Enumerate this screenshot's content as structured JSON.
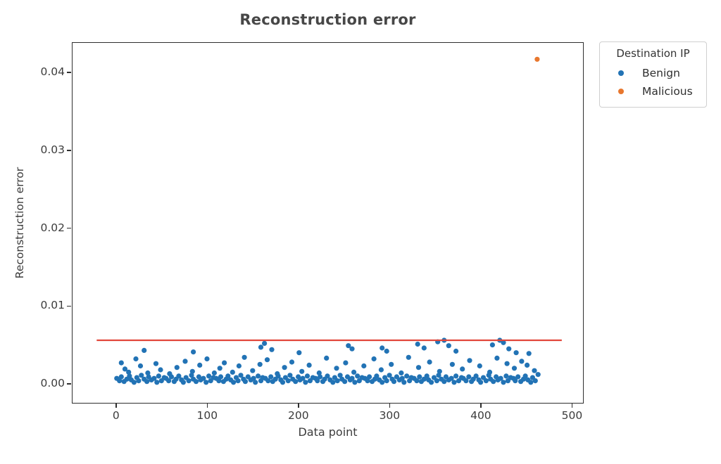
{
  "chart_data": {
    "type": "scatter",
    "title": "Reconstruction error",
    "xlabel": "Data point",
    "ylabel": "Reconstruction error",
    "xlim": [
      -48.5,
      510.5
    ],
    "ylim": [
      -0.00225,
      0.0439
    ],
    "x_ticks": [
      0,
      100,
      200,
      300,
      400,
      500
    ],
    "x_tick_labels": [
      "0",
      "100",
      "200",
      "300",
      "400",
      "500"
    ],
    "y_ticks": [
      0.0,
      0.01,
      0.02,
      0.03,
      0.04
    ],
    "y_tick_labels": [
      "0.00",
      "0.01",
      "0.02",
      "0.03",
      "0.04"
    ],
    "grid": false,
    "legend": {
      "title": "Destination IP",
      "position": "outside-upper-right",
      "entries": [
        {
          "label": "Benign",
          "color": "#2273b5"
        },
        {
          "label": "Malicious",
          "color": "#e8772e"
        }
      ]
    },
    "threshold_line": {
      "y": 0.0057,
      "x_start": -22,
      "x_end": 488,
      "color": "#e2473b",
      "width": 2.2
    },
    "colors": {
      "spine": "#2e2e2e",
      "text": "#3c3c3c",
      "background": "#ffffff"
    },
    "series": [
      {
        "name": "Benign",
        "color": "#2273b5",
        "marker_radius": 3.6,
        "points": [
          [
            0,
            0.0008
          ],
          [
            3,
            0.0005
          ],
          [
            5,
            0.001
          ],
          [
            8,
            0.0004
          ],
          [
            11,
            0.0007
          ],
          [
            14,
            0.0011
          ],
          [
            16,
            0.0006
          ],
          [
            19,
            0.0003
          ],
          [
            22,
            0.0009
          ],
          [
            24,
            0.0005
          ],
          [
            27,
            0.0012
          ],
          [
            30,
            0.0007
          ],
          [
            33,
            0.0004
          ],
          [
            35,
            0.001
          ],
          [
            38,
            0.0006
          ],
          [
            41,
            0.0008
          ],
          [
            44,
            0.0003
          ],
          [
            46,
            0.0011
          ],
          [
            49,
            0.0005
          ],
          [
            52,
            0.0009
          ],
          [
            54,
            0.0008
          ],
          [
            57,
            0.0005
          ],
          [
            60,
            0.001
          ],
          [
            63,
            0.0004
          ],
          [
            65,
            0.0007
          ],
          [
            68,
            0.0011
          ],
          [
            71,
            0.0006
          ],
          [
            73,
            0.0003
          ],
          [
            76,
            0.0009
          ],
          [
            79,
            0.0005
          ],
          [
            82,
            0.0012
          ],
          [
            84,
            0.0007
          ],
          [
            87,
            0.0004
          ],
          [
            90,
            0.001
          ],
          [
            92,
            0.0006
          ],
          [
            95,
            0.0008
          ],
          [
            98,
            0.0003
          ],
          [
            101,
            0.0011
          ],
          [
            103,
            0.0005
          ],
          [
            106,
            0.0009
          ],
          [
            109,
            0.0008
          ],
          [
            112,
            0.0005
          ],
          [
            114,
            0.001
          ],
          [
            117,
            0.0004
          ],
          [
            120,
            0.0007
          ],
          [
            122,
            0.0011
          ],
          [
            125,
            0.0006
          ],
          [
            128,
            0.0003
          ],
          [
            131,
            0.0009
          ],
          [
            133,
            0.0005
          ],
          [
            136,
            0.0012
          ],
          [
            139,
            0.0007
          ],
          [
            141,
            0.0004
          ],
          [
            144,
            0.001
          ],
          [
            147,
            0.0006
          ],
          [
            150,
            0.0008
          ],
          [
            152,
            0.0003
          ],
          [
            155,
            0.0011
          ],
          [
            158,
            0.0005
          ],
          [
            160,
            0.0009
          ],
          [
            163,
            0.0008
          ],
          [
            166,
            0.0005
          ],
          [
            169,
            0.001
          ],
          [
            171,
            0.0004
          ],
          [
            174,
            0.0007
          ],
          [
            177,
            0.0011
          ],
          [
            180,
            0.0006
          ],
          [
            182,
            0.0003
          ],
          [
            185,
            0.0009
          ],
          [
            188,
            0.0005
          ],
          [
            190,
            0.0012
          ],
          [
            193,
            0.0007
          ],
          [
            196,
            0.0004
          ],
          [
            199,
            0.001
          ],
          [
            201,
            0.0006
          ],
          [
            204,
            0.0008
          ],
          [
            207,
            0.0003
          ],
          [
            209,
            0.0011
          ],
          [
            212,
            0.0005
          ],
          [
            215,
            0.0009
          ],
          [
            218,
            0.0008
          ],
          [
            220,
            0.0005
          ],
          [
            223,
            0.001
          ],
          [
            226,
            0.0004
          ],
          [
            228,
            0.0007
          ],
          [
            231,
            0.0011
          ],
          [
            234,
            0.0006
          ],
          [
            237,
            0.0003
          ],
          [
            239,
            0.0009
          ],
          [
            242,
            0.0005
          ],
          [
            245,
            0.0012
          ],
          [
            247,
            0.0007
          ],
          [
            250,
            0.0004
          ],
          [
            253,
            0.001
          ],
          [
            256,
            0.0006
          ],
          [
            258,
            0.0008
          ],
          [
            261,
            0.0003
          ],
          [
            264,
            0.0011
          ],
          [
            266,
            0.0005
          ],
          [
            269,
            0.0009
          ],
          [
            272,
            0.0008
          ],
          [
            275,
            0.0005
          ],
          [
            277,
            0.001
          ],
          [
            280,
            0.0004
          ],
          [
            283,
            0.0007
          ],
          [
            285,
            0.0011
          ],
          [
            288,
            0.0006
          ],
          [
            291,
            0.0003
          ],
          [
            294,
            0.0009
          ],
          [
            296,
            0.0005
          ],
          [
            299,
            0.0012
          ],
          [
            302,
            0.0007
          ],
          [
            304,
            0.0004
          ],
          [
            307,
            0.001
          ],
          [
            310,
            0.0006
          ],
          [
            313,
            0.0008
          ],
          [
            315,
            0.0003
          ],
          [
            318,
            0.0011
          ],
          [
            321,
            0.0005
          ],
          [
            323,
            0.0009
          ],
          [
            326,
            0.0008
          ],
          [
            329,
            0.0005
          ],
          [
            332,
            0.001
          ],
          [
            334,
            0.0004
          ],
          [
            337,
            0.0007
          ],
          [
            340,
            0.0011
          ],
          [
            342,
            0.0006
          ],
          [
            345,
            0.0003
          ],
          [
            348,
            0.0009
          ],
          [
            351,
            0.0005
          ],
          [
            353,
            0.0012
          ],
          [
            356,
            0.0007
          ],
          [
            359,
            0.0004
          ],
          [
            361,
            0.001
          ],
          [
            364,
            0.0006
          ],
          [
            367,
            0.0008
          ],
          [
            370,
            0.0003
          ],
          [
            372,
            0.0011
          ],
          [
            375,
            0.0005
          ],
          [
            378,
            0.0009
          ],
          [
            380,
            0.0008
          ],
          [
            383,
            0.0005
          ],
          [
            386,
            0.001
          ],
          [
            389,
            0.0004
          ],
          [
            391,
            0.0007
          ],
          [
            394,
            0.0011
          ],
          [
            397,
            0.0006
          ],
          [
            399,
            0.0003
          ],
          [
            402,
            0.0009
          ],
          [
            405,
            0.0005
          ],
          [
            408,
            0.0012
          ],
          [
            410,
            0.0007
          ],
          [
            413,
            0.0004
          ],
          [
            416,
            0.001
          ],
          [
            418,
            0.0006
          ],
          [
            421,
            0.0008
          ],
          [
            424,
            0.0003
          ],
          [
            427,
            0.0011
          ],
          [
            429,
            0.0005
          ],
          [
            432,
            0.0009
          ],
          [
            435,
            0.0008
          ],
          [
            437,
            0.0005
          ],
          [
            440,
            0.001
          ],
          [
            443,
            0.0004
          ],
          [
            446,
            0.0007
          ],
          [
            448,
            0.0011
          ],
          [
            451,
            0.0006
          ],
          [
            454,
            0.0003
          ],
          [
            456,
            0.0009
          ],
          [
            459,
            0.0005
          ],
          [
            5,
            0.0028
          ],
          [
            9,
            0.002
          ],
          [
            13,
            0.0016
          ],
          [
            21,
            0.0033
          ],
          [
            26,
            0.0024
          ],
          [
            34,
            0.0015
          ],
          [
            43,
            0.0027
          ],
          [
            48,
            0.0019
          ],
          [
            58,
            0.0014
          ],
          [
            66,
            0.0022
          ],
          [
            75,
            0.003
          ],
          [
            83,
            0.0017
          ],
          [
            91,
            0.0025
          ],
          [
            99,
            0.0033
          ],
          [
            107,
            0.0015
          ],
          [
            113,
            0.0021
          ],
          [
            118,
            0.0028
          ],
          [
            127,
            0.0016
          ],
          [
            134,
            0.0024
          ],
          [
            140,
            0.0035
          ],
          [
            149,
            0.0018
          ],
          [
            157,
            0.0026
          ],
          [
            165,
            0.0032
          ],
          [
            176,
            0.0014
          ],
          [
            184,
            0.0022
          ],
          [
            192,
            0.0029
          ],
          [
            203,
            0.0017
          ],
          [
            211,
            0.0025
          ],
          [
            222,
            0.0015
          ],
          [
            230,
            0.0034
          ],
          [
            241,
            0.0021
          ],
          [
            251,
            0.0028
          ],
          [
            260,
            0.0016
          ],
          [
            271,
            0.0024
          ],
          [
            282,
            0.0033
          ],
          [
            290,
            0.0019
          ],
          [
            301,
            0.0026
          ],
          [
            312,
            0.0015
          ],
          [
            320,
            0.0035
          ],
          [
            331,
            0.0022
          ],
          [
            343,
            0.0029
          ],
          [
            354,
            0.0017
          ],
          [
            368,
            0.0026
          ],
          [
            379,
            0.002
          ],
          [
            387,
            0.0031
          ],
          [
            398,
            0.0024
          ],
          [
            409,
            0.0016
          ],
          [
            417,
            0.0034
          ],
          [
            428,
            0.0027
          ],
          [
            436,
            0.0021
          ],
          [
            444,
            0.003
          ],
          [
            450,
            0.0025
          ],
          [
            458,
            0.0018
          ],
          [
            462,
            0.0013
          ],
          [
            30,
            0.0044
          ],
          [
            84,
            0.0042
          ],
          [
            158,
            0.0048
          ],
          [
            162,
            0.0053
          ],
          [
            170,
            0.0045
          ],
          [
            200,
            0.0041
          ],
          [
            254,
            0.005
          ],
          [
            258,
            0.0046
          ],
          [
            291,
            0.0047
          ],
          [
            296,
            0.0043
          ],
          [
            330,
            0.0052
          ],
          [
            337,
            0.0047
          ],
          [
            352,
            0.0055
          ],
          [
            359,
            0.0057
          ],
          [
            364,
            0.005
          ],
          [
            372,
            0.0043
          ],
          [
            412,
            0.0051
          ],
          [
            420,
            0.0057
          ],
          [
            424,
            0.0054
          ],
          [
            430,
            0.0046
          ],
          [
            438,
            0.0041
          ],
          [
            452,
            0.004
          ]
        ]
      },
      {
        "name": "Malicious",
        "color": "#e8772e",
        "marker_radius": 3.6,
        "points": [
          [
            461,
            0.0418
          ]
        ]
      }
    ]
  }
}
